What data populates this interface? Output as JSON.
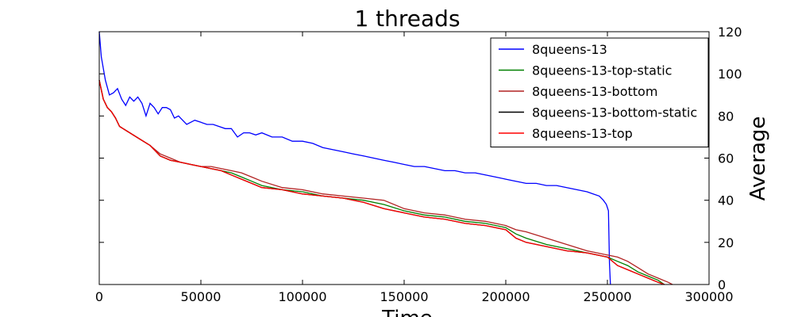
{
  "chart_data": {
    "type": "line",
    "title": "1 threads",
    "xlabel": "Time",
    "ylabel": "Average",
    "xlim": [
      0,
      300000
    ],
    "ylim": [
      0,
      120
    ],
    "x_ticks": [
      "0",
      "50000",
      "100000",
      "150000",
      "200000",
      "250000",
      "300000"
    ],
    "y_ticks": [
      "0",
      "20",
      "40",
      "60",
      "80",
      "100",
      "120"
    ],
    "y_axis_side": "right",
    "grid": false,
    "legend_position": "top-right",
    "series": [
      {
        "name": "8queens-13",
        "color": "#0000ff",
        "x": [
          0,
          1000,
          3000,
          5000,
          7000,
          9000,
          11000,
          13000,
          15000,
          17000,
          19000,
          21000,
          23000,
          25000,
          27000,
          29000,
          31000,
          33000,
          35000,
          37000,
          39000,
          41000,
          43000,
          45000,
          47000,
          50000,
          53000,
          56000,
          59000,
          62000,
          65000,
          68000,
          71000,
          74000,
          77000,
          80000,
          85000,
          90000,
          95000,
          100000,
          105000,
          110000,
          115000,
          120000,
          125000,
          130000,
          135000,
          140000,
          145000,
          150000,
          155000,
          160000,
          165000,
          170000,
          175000,
          180000,
          185000,
          190000,
          195000,
          200000,
          205000,
          210000,
          215000,
          220000,
          225000,
          230000,
          235000,
          240000,
          243000,
          246000,
          248000,
          249500,
          250500,
          251000,
          251500
        ],
        "y": [
          120,
          108,
          97,
          90,
          91,
          93,
          88,
          85,
          89,
          87,
          89,
          86,
          80,
          86,
          84,
          81,
          84,
          84,
          83,
          79,
          80,
          78,
          76,
          77,
          78,
          77,
          76,
          76,
          75,
          74,
          74,
          70,
          72,
          72,
          71,
          72,
          70,
          70,
          68,
          68,
          67,
          65,
          64,
          63,
          62,
          61,
          60,
          59,
          58,
          57,
          56,
          56,
          55,
          54,
          54,
          53,
          53,
          52,
          51,
          50,
          49,
          48,
          48,
          47,
          47,
          46,
          45,
          44,
          43,
          42,
          40,
          38,
          35,
          10,
          0
        ]
      },
      {
        "name": "8queens-13-top-static",
        "color": "#008000",
        "x": [
          0,
          2000,
          4000,
          6000,
          8000,
          10000,
          15000,
          20000,
          25000,
          30000,
          35000,
          40000,
          45000,
          50000,
          55000,
          60000,
          65000,
          70000,
          75000,
          80000,
          90000,
          100000,
          110000,
          120000,
          130000,
          140000,
          150000,
          160000,
          170000,
          180000,
          190000,
          200000,
          205000,
          210000,
          220000,
          230000,
          240000,
          245000,
          250000,
          255000,
          260000,
          265000,
          270000,
          275000,
          278000
        ],
        "y": [
          97,
          88,
          84,
          82,
          79,
          75,
          72,
          69,
          66,
          61,
          59,
          58,
          57,
          56,
          55,
          54,
          53,
          51,
          49,
          47,
          45,
          44,
          42,
          41,
          40,
          38,
          35,
          33,
          32,
          30,
          29,
          27,
          24,
          22,
          19,
          17,
          15,
          14,
          13,
          11,
          9,
          6,
          4,
          2,
          0
        ]
      },
      {
        "name": "8queens-13-bottom",
        "color": "#b22222",
        "x": [
          0,
          2000,
          4000,
          6000,
          8000,
          10000,
          15000,
          20000,
          25000,
          30000,
          35000,
          40000,
          45000,
          50000,
          55000,
          60000,
          65000,
          70000,
          75000,
          80000,
          90000,
          100000,
          110000,
          120000,
          130000,
          140000,
          150000,
          160000,
          170000,
          180000,
          190000,
          200000,
          205000,
          210000,
          220000,
          230000,
          240000,
          245000,
          250000,
          255000,
          260000,
          265000,
          270000,
          275000,
          280000,
          282000
        ],
        "y": [
          97,
          88,
          84,
          82,
          79,
          75,
          72,
          69,
          66,
          62,
          60,
          58,
          57,
          56,
          56,
          55,
          54,
          53,
          51,
          49,
          46,
          45,
          43,
          42,
          41,
          40,
          36,
          34,
          33,
          31,
          30,
          28,
          26,
          25,
          22,
          19,
          16,
          15,
          14,
          13,
          11,
          8,
          5,
          3,
          1,
          0
        ]
      },
      {
        "name": "8queens-13-bottom-static",
        "color": "#000000",
        "x": [
          0,
          2000,
          4000,
          6000,
          8000,
          10000,
          15000,
          20000,
          25000,
          30000,
          35000,
          40000,
          45000,
          50000,
          55000,
          60000,
          65000,
          70000,
          75000,
          80000,
          90000,
          100000,
          110000,
          120000,
          130000,
          140000,
          150000,
          160000,
          170000,
          180000,
          190000,
          200000,
          205000,
          210000,
          220000,
          230000,
          240000,
          245000,
          250000,
          255000,
          260000,
          265000,
          270000,
          275000,
          278000
        ],
        "y": [
          97,
          88,
          84,
          82,
          79,
          75,
          72,
          69,
          66,
          61,
          59,
          58,
          57,
          56,
          55,
          54,
          52,
          50,
          48,
          46,
          45,
          43,
          42,
          41,
          39,
          36,
          34,
          32,
          31,
          29,
          28,
          26,
          22,
          20,
          18,
          16,
          15,
          14,
          13,
          9,
          7,
          5,
          3,
          1,
          0
        ]
      },
      {
        "name": "8queens-13-top",
        "color": "#ff0000",
        "x": [
          0,
          2000,
          4000,
          6000,
          8000,
          10000,
          15000,
          20000,
          25000,
          30000,
          35000,
          40000,
          45000,
          50000,
          55000,
          60000,
          65000,
          70000,
          75000,
          80000,
          90000,
          100000,
          110000,
          120000,
          130000,
          140000,
          150000,
          160000,
          170000,
          180000,
          190000,
          200000,
          205000,
          210000,
          220000,
          230000,
          240000,
          245000,
          250000,
          255000,
          260000,
          265000,
          270000,
          275000,
          278000
        ],
        "y": [
          97,
          88,
          84,
          82,
          79,
          75,
          72,
          69,
          66,
          61,
          59,
          58,
          57,
          56,
          55,
          54,
          52,
          50,
          48,
          46,
          45,
          43,
          42,
          41,
          39,
          36,
          34,
          32,
          31,
          29,
          28,
          26,
          22,
          20,
          18,
          16,
          15,
          14,
          13,
          9,
          7,
          5,
          3,
          1,
          0
        ]
      }
    ]
  }
}
